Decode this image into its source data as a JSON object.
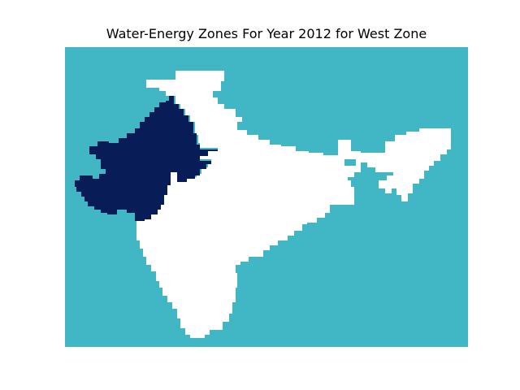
{
  "title": "Water-Energy Zones For Year 2012 for West Zone",
  "colors": {
    "background_water": "#41b6c4",
    "land": "#ffffff",
    "west_zone": "#081d58"
  },
  "legend": {
    "highlighted_region": "West Zone"
  }
}
